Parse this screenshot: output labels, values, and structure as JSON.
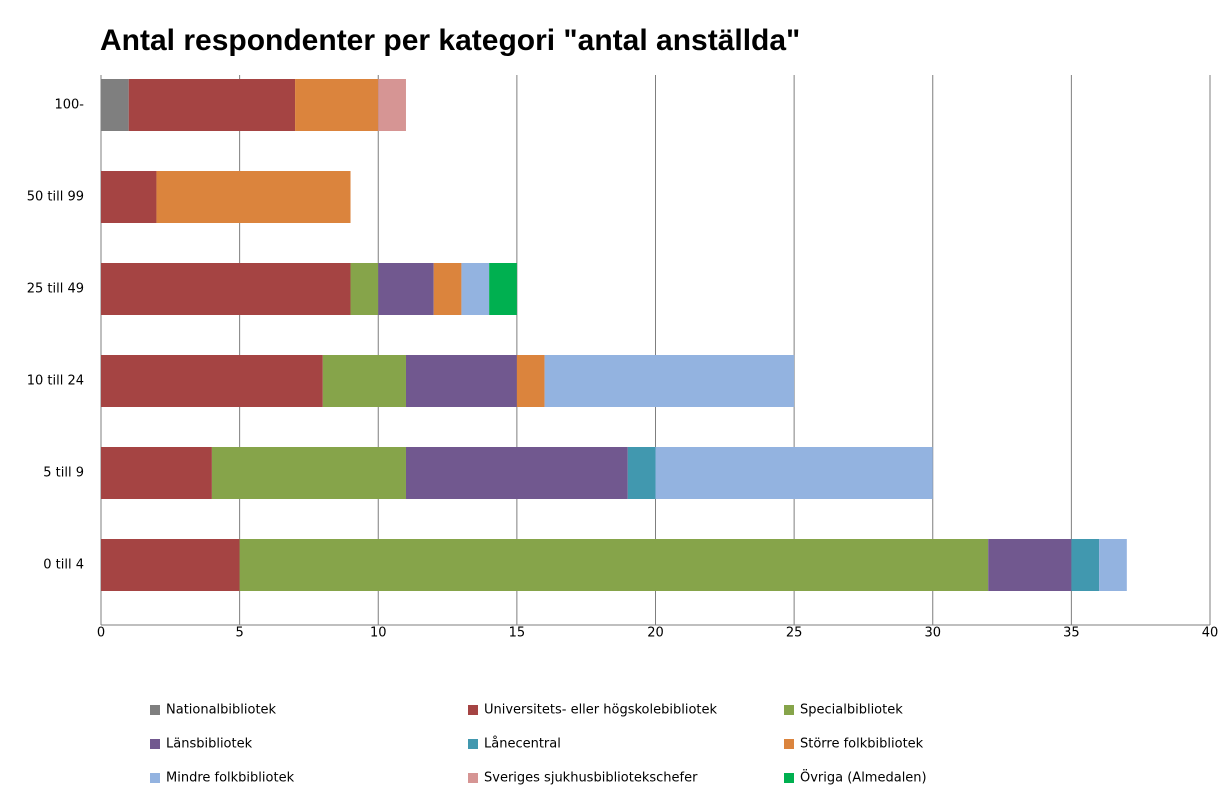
{
  "chart_data": {
    "type": "stacked_barh",
    "title": "Antal respondenter per kategori \"antal anställda\"",
    "categories": [
      "100-",
      "50 till 99",
      "25 till 49",
      "10 till 24",
      "5 till 9",
      "0 till 4"
    ],
    "series": [
      {
        "name": "Nationalbibliotek",
        "color": "#7f7f7f",
        "values": [
          1,
          0,
          0,
          0,
          0,
          0
        ]
      },
      {
        "name": "Universitets- eller högskolebibliotek",
        "color": "#a54443",
        "values": [
          6,
          2,
          9,
          8,
          4,
          5
        ]
      },
      {
        "name": "Specialbibliotek",
        "color": "#86a44a",
        "values": [
          0,
          0,
          1,
          3,
          7,
          27
        ]
      },
      {
        "name": "Länsbibliotek",
        "color": "#71588f",
        "values": [
          0,
          0,
          2,
          4,
          8,
          3
        ]
      },
      {
        "name": "Lånecentral",
        "color": "#4198af",
        "values": [
          0,
          0,
          0,
          0,
          1,
          1
        ]
      },
      {
        "name": "Större folkbibliotek",
        "color": "#db843d",
        "values": [
          3,
          7,
          1,
          1,
          0,
          0
        ]
      },
      {
        "name": "Mindre folkbibliotek",
        "color": "#93b3e0",
        "values": [
          0,
          0,
          1,
          9,
          10,
          1
        ]
      },
      {
        "name": "Sveriges sjukhusbibliotekschefer",
        "color": "#d69594",
        "values": [
          1,
          0,
          0,
          0,
          0,
          0
        ]
      },
      {
        "name": "Övriga (Almedalen)",
        "color": "#00b050",
        "values": [
          0,
          0,
          1,
          0,
          0,
          0
        ]
      }
    ],
    "xlim": [
      0,
      40
    ],
    "xticks": [
      0,
      5,
      10,
      15,
      20,
      25,
      30,
      35,
      40
    ],
    "grid": true
  }
}
